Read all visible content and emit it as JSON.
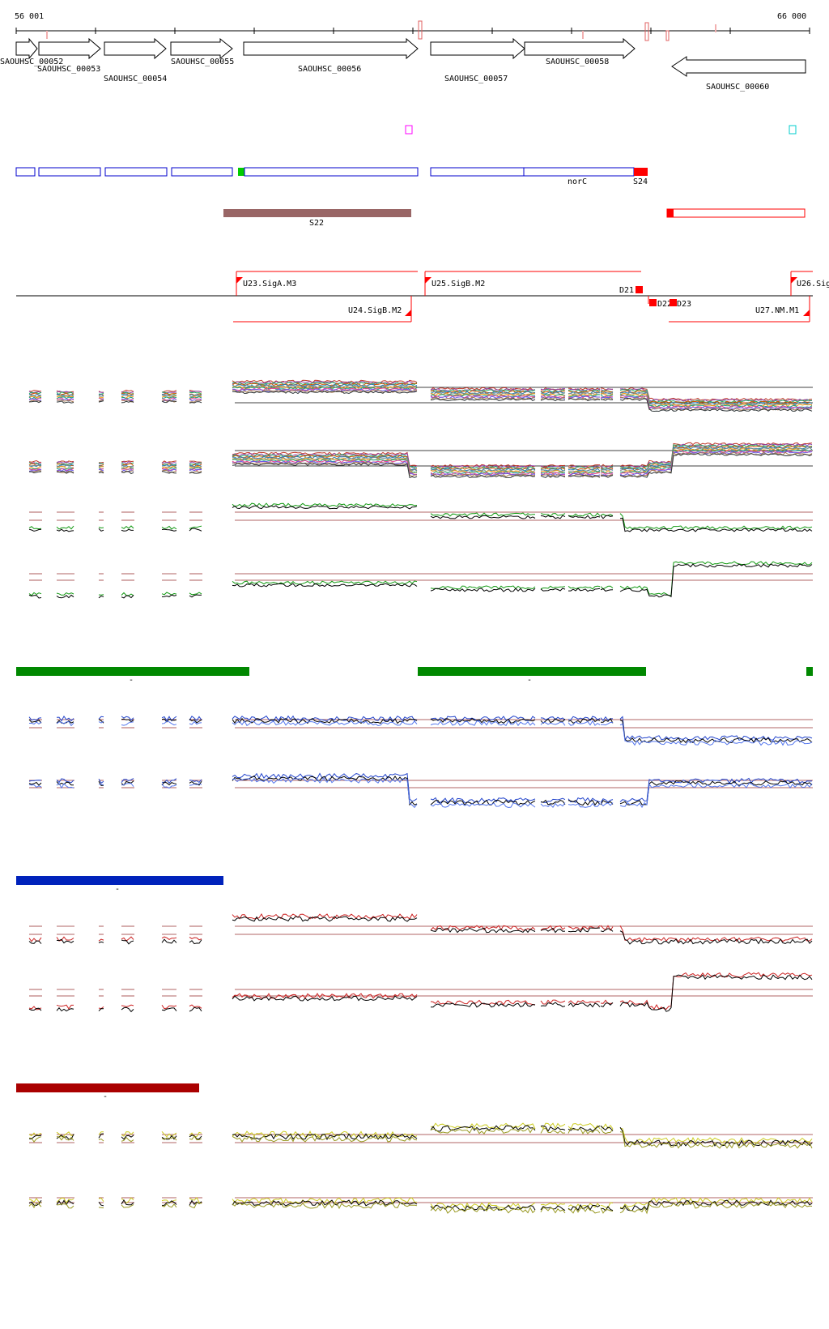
{
  "coords": {
    "start": "56 001",
    "end": "66 000"
  },
  "genes": [
    {
      "name": "SAOUHSC_00052",
      "strand": "+"
    },
    {
      "name": "SAOUHSC_00053",
      "strand": "+"
    },
    {
      "name": "SAOUHSC_00054",
      "strand": "+"
    },
    {
      "name": "SAOUHSC_00055",
      "strand": "+"
    },
    {
      "name": "SAOUHSC_00056",
      "strand": "+"
    },
    {
      "name": "SAOUHSC_00057",
      "strand": "+"
    },
    {
      "name": "SAOUHSC_00058",
      "strand": "+"
    },
    {
      "name": "SAOUHSC_00060",
      "strand": "-"
    }
  ],
  "segments": {
    "upper_labels": [
      "norC",
      "S24"
    ],
    "lower_labels": [
      "S22"
    ]
  },
  "tus": {
    "forward": [
      "U23.SigA.M3",
      "U25.SigB.M2",
      "U26.Sig"
    ],
    "reverse": [
      "U24.SigB.M2",
      "U27.NM.M1"
    ],
    "down": [
      "D21",
      "D22",
      "D23"
    ]
  },
  "condition_bar_labels": [
    "-",
    "-",
    "-",
    "-"
  ],
  "colors": {
    "gene_outline": "#000000",
    "segment_blue": "#0000cc",
    "segment_red": "#ff0000",
    "segment_green": "#00cc00",
    "s22_bar": "#996666",
    "tu_red": "#ff0000",
    "marker_magenta": "#ff00ff",
    "marker_cyan": "#00cccc",
    "bar_green": "#008800",
    "bar_blue": "#0022bb",
    "bar_darkred": "#aa0000",
    "line_green": "#119911",
    "line_blue": "#2244cc",
    "line_red": "#cc2222",
    "line_yellow": "#cccc22",
    "threshold": "#993333"
  }
}
